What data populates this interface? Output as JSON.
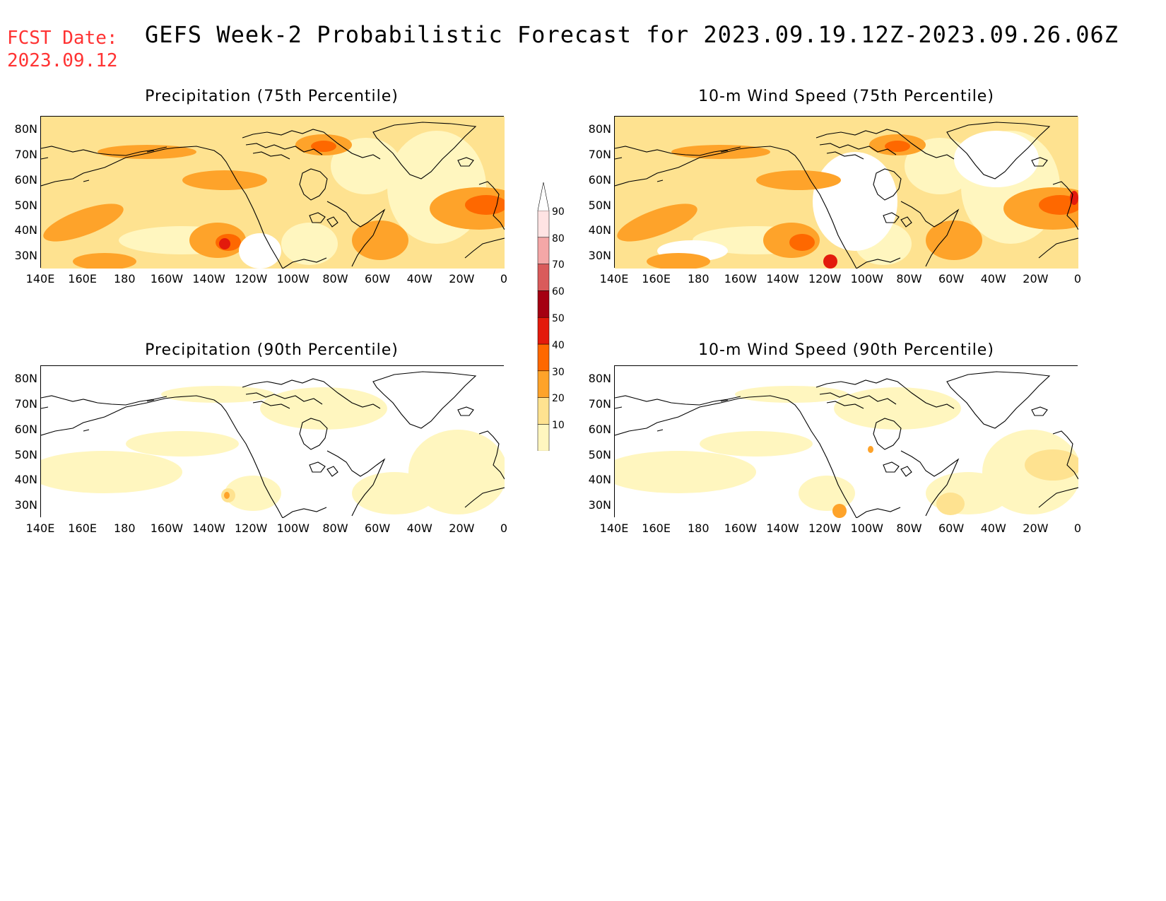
{
  "fcst": {
    "line1": "FCST Date:",
    "line2": "2023.09.12",
    "color": "#ff3333"
  },
  "title": "GEFS Week-2 Probabilistic Forecast for 2023.09.19.12Z-2023.09.26.06Z",
  "panels": [
    {
      "id": "precip75",
      "title": "Precipitation (75th Percentile)",
      "intensity": "high"
    },
    {
      "id": "wind75",
      "title": "10-m Wind Speed (75th Percentile)",
      "intensity": "high"
    },
    {
      "id": "precip90",
      "title": "Precipitation (90th Percentile)",
      "intensity": "low"
    },
    {
      "id": "wind90",
      "title": "10-m Wind Speed (90th Percentile)",
      "intensity": "low"
    }
  ],
  "lat_labels": [
    "80N",
    "70N",
    "60N",
    "50N",
    "40N",
    "30N"
  ],
  "lon_labels": [
    "140E",
    "160E",
    "180",
    "160W",
    "140W",
    "120W",
    "100W",
    "80W",
    "60W",
    "40W",
    "20W",
    "0"
  ],
  "colorbar": {
    "levels": [
      "10",
      "20",
      "30",
      "40",
      "50",
      "60",
      "70",
      "80",
      "90"
    ],
    "colors": [
      "#fff6bf",
      "#fee290",
      "#fea32a",
      "#fe6800",
      "#e31a0c",
      "#a50012",
      "#d95b5b",
      "#f4a7a7",
      "#ffe3e3"
    ]
  }
}
